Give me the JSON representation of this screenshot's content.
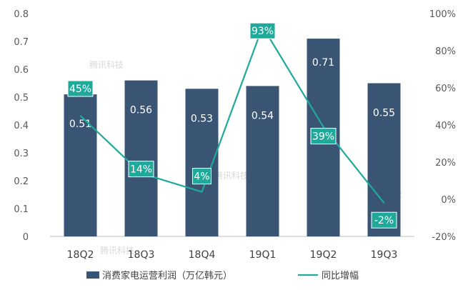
{
  "chart_data": {
    "type": "bar",
    "categories": [
      "18Q2",
      "18Q3",
      "18Q4",
      "19Q1",
      "19Q2",
      "19Q3"
    ],
    "series": [
      {
        "name": "消费家电运营利润（万亿韩元）",
        "type": "bar",
        "axis": "left",
        "values": [
          0.51,
          0.56,
          0.53,
          0.54,
          0.71,
          0.55
        ],
        "labels": [
          "0.51",
          "0.56",
          "0.53",
          "0.54",
          "0.71",
          "0.55"
        ]
      },
      {
        "name": "同比增幅",
        "type": "line",
        "axis": "right",
        "values": [
          45,
          14,
          4,
          93,
          39,
          -2
        ],
        "labels": [
          "45%",
          "14%",
          "4%",
          "93%",
          "39%",
          "-2%"
        ]
      }
    ],
    "left_axis": {
      "min": 0,
      "max": 0.8,
      "ticks": [
        "0",
        "0.1",
        "0.2",
        "0.3",
        "0.4",
        "0.5",
        "0.6",
        "0.7",
        "0.8"
      ]
    },
    "right_axis": {
      "min": -20,
      "max": 100,
      "ticks": [
        "-20%",
        "0%",
        "20%",
        "40%",
        "60%",
        "80%",
        "100%"
      ]
    },
    "legend_position": "bottom",
    "grid": false,
    "colors": {
      "bar": "#3a5573",
      "line": "#1fa99b"
    },
    "watermark": "腾讯科技"
  }
}
